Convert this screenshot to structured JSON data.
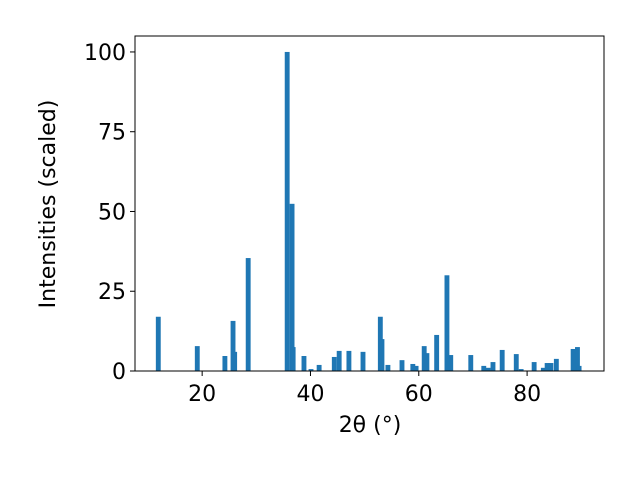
{
  "chart_data": {
    "type": "bar",
    "xlabel": "2θ (°)",
    "ylabel": "Intensities (scaled)",
    "x": [
      11.9,
      19.1,
      24.2,
      25.7,
      26.0,
      28.5,
      35.7,
      36.6,
      36.8,
      38.8,
      40.1,
      41.6,
      44.4,
      45.3,
      47.1,
      49.7,
      52.9,
      53.2,
      54.3,
      56.9,
      58.9,
      59.5,
      61.0,
      61.5,
      63.3,
      65.2,
      65.9,
      69.6,
      72.0,
      72.8,
      73.7,
      75.4,
      78.0,
      78.9,
      81.3,
      83.0,
      83.7,
      84.4,
      85.4,
      88.5,
      89.3,
      89.6
    ],
    "values": [
      17,
      7.8,
      4.7,
      15.7,
      6,
      35.4,
      100,
      52.4,
      7.5,
      4.7,
      0.6,
      1.9,
      4.4,
      6.3,
      6.3,
      6,
      17,
      10,
      1.9,
      3.4,
      2.2,
      1.6,
      7.8,
      5.6,
      11.3,
      30,
      5,
      5,
      1.6,
      1,
      2.8,
      6.6,
      5.3,
      0.6,
      2.8,
      1,
      2.5,
      2.5,
      3.8,
      6.9,
      7.5,
      1.6
    ],
    "bar_width": 0.9,
    "color": "#1f77b4",
    "xlim": [
      7.6,
      94.2
    ],
    "xticks": [
      20,
      40,
      60,
      80
    ],
    "ylim": [
      0,
      105
    ],
    "yticks": [
      0,
      25,
      50,
      75,
      100
    ],
    "grid": false
  }
}
